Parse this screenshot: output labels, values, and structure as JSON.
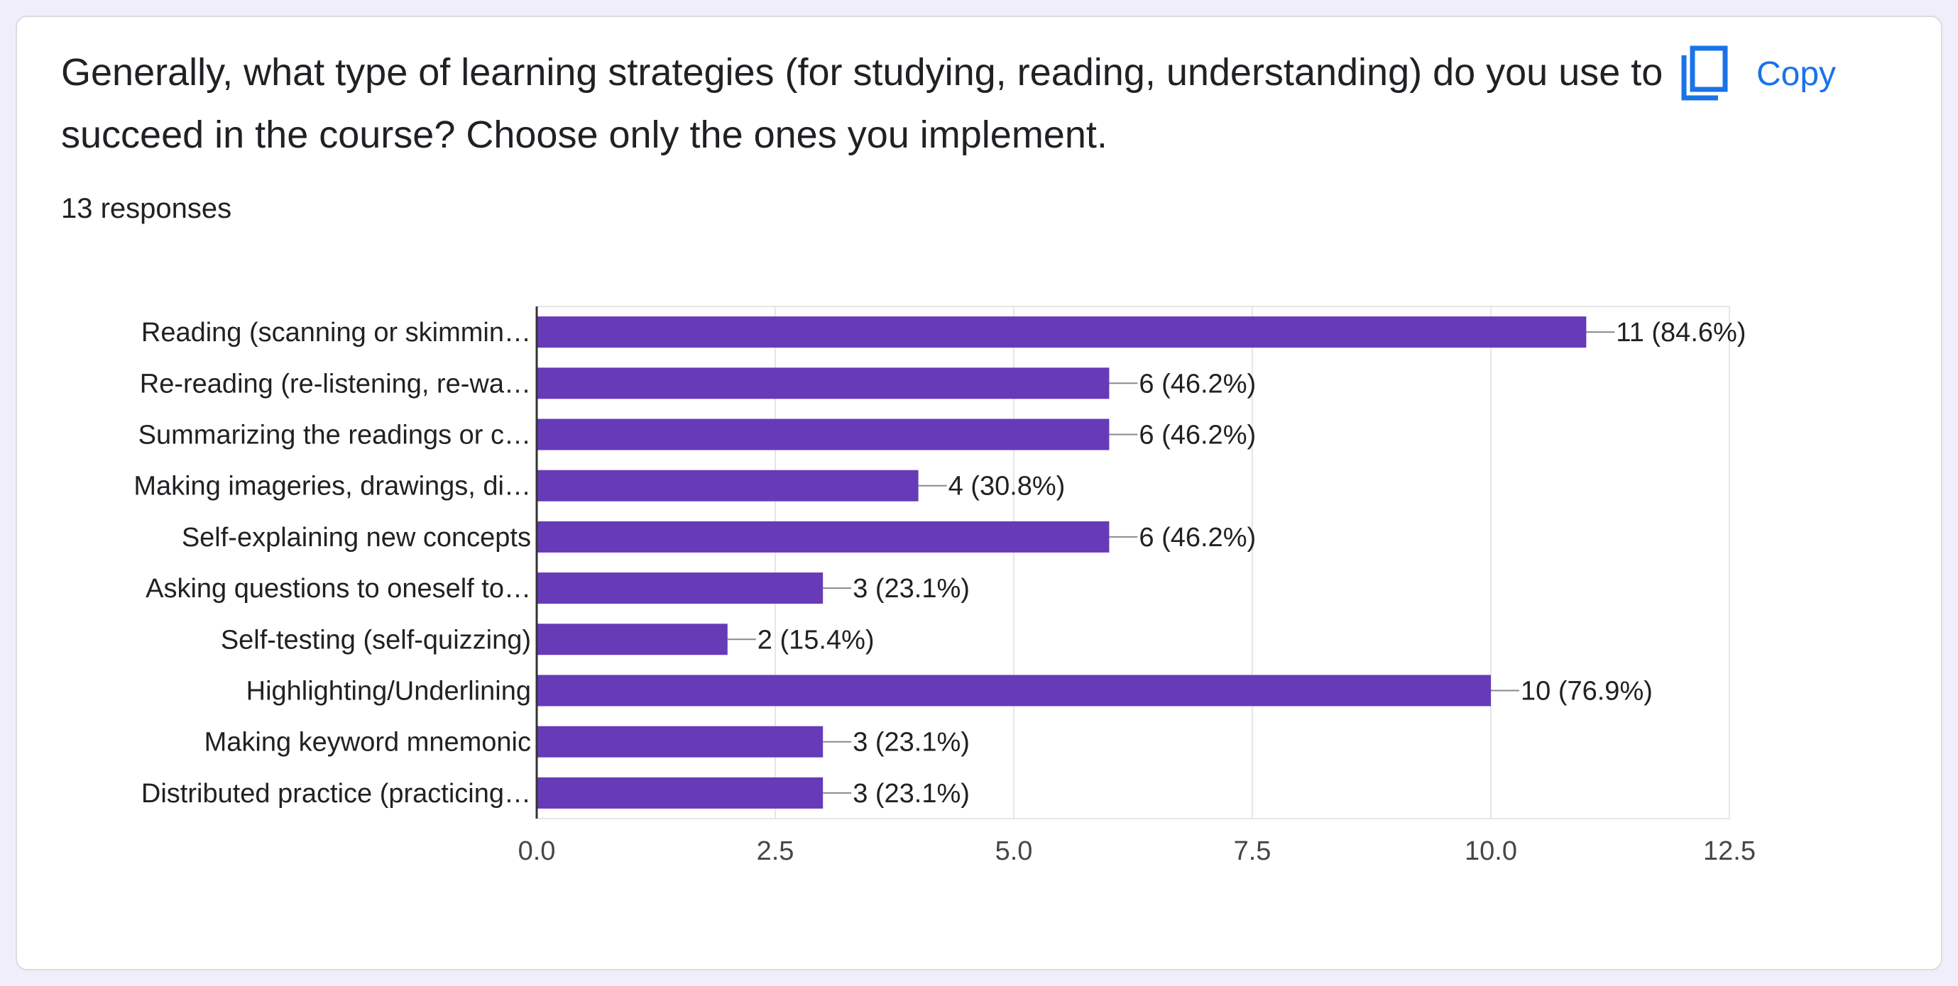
{
  "card": {
    "question": "Generally, what type of learning strategies (for studying, reading, understanding) do you use to succeed in the course? Choose only the ones you implement.",
    "responses": "13 responses",
    "copy_label": "Copy",
    "copy_icon": "copy-icon"
  },
  "colors": {
    "bar": "#673ab7",
    "grid": "#e6e6e6",
    "axis": "#333333",
    "accent": "#1a73e8"
  },
  "chart_data": {
    "type": "bar",
    "orientation": "horizontal",
    "categories": [
      "Reading (scanning or skimmin…",
      "Re-reading (re-listening, re-wa…",
      "Summarizing the readings or c…",
      "Making imageries, drawings, di…",
      "Self-explaining new concepts",
      "Asking questions to oneself to…",
      "Self-testing (self-quizzing)",
      "Highlighting/Underlining",
      "Making keyword mnemonic",
      "Distributed practice (practicing…"
    ],
    "values": [
      11,
      6,
      6,
      4,
      6,
      3,
      2,
      10,
      3,
      3
    ],
    "value_labels": [
      "11 (84.6%)",
      "6 (46.2%)",
      "6 (46.2%)",
      "4 (30.8%)",
      "6 (46.2%)",
      "3 (23.1%)",
      "2 (15.4%)",
      "10 (76.9%)",
      "3 (23.1%)",
      "3 (23.1%)"
    ],
    "xlim": [
      0,
      12.5
    ],
    "xticks": [
      0,
      2.5,
      5,
      7.5,
      10,
      12.5
    ],
    "xtick_labels": [
      "0.0",
      "2.5",
      "5.0",
      "7.5",
      "10.0",
      "12.5"
    ],
    "grid": true
  }
}
